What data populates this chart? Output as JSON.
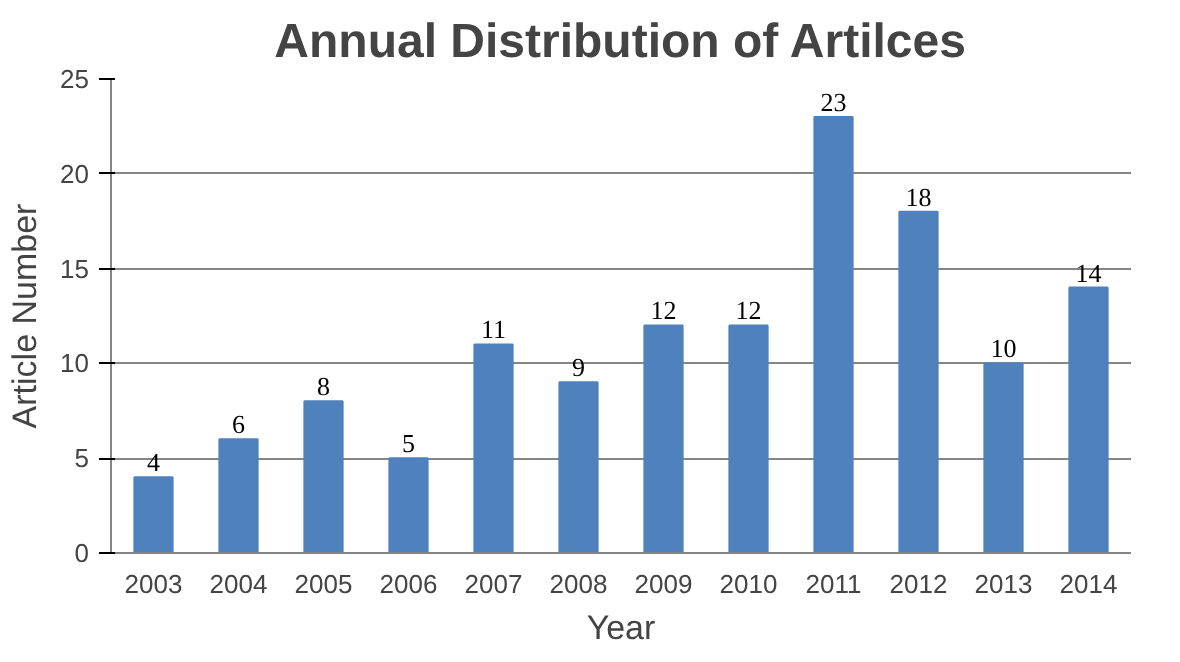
{
  "chart_data": {
    "type": "bar",
    "title": "Annual Distribution of Artilces",
    "xlabel": "Year",
    "ylabel": "Article Number",
    "categories": [
      "2003",
      "2004",
      "2005",
      "2006",
      "2007",
      "2008",
      "2009",
      "2010",
      "2011",
      "2012",
      "2013",
      "2014"
    ],
    "values": [
      4,
      6,
      8,
      5,
      11,
      9,
      12,
      12,
      23,
      18,
      10,
      14
    ],
    "color": "#4f81bd",
    "ylim": [
      0,
      25
    ],
    "yticks": [
      0,
      5,
      10,
      15,
      20,
      25
    ],
    "grid": "y",
    "data_labels": true
  }
}
